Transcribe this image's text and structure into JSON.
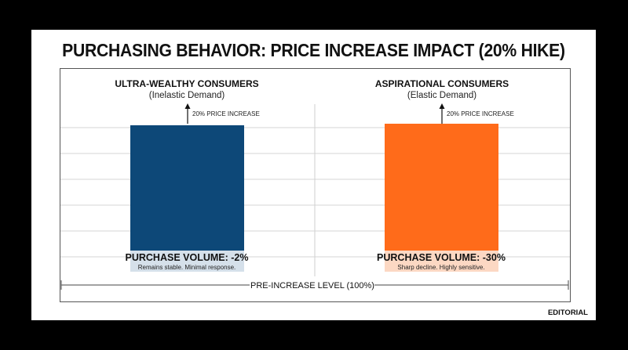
{
  "title": "PURCHASING BEHAVIOR: PRICE INCREASE IMPACT (20% HIKE)",
  "footer": "EDITORIAL",
  "colors": {
    "ultra": "#0d4878",
    "ultra_label_bg": "#d5e0ea",
    "aspirational": "#ff6b1a",
    "aspirational_label_bg": "#fcd8c3"
  },
  "chart_data": {
    "type": "bar",
    "title": "PURCHASING BEHAVIOR: PRICE INCREASE IMPACT (20% HIKE)",
    "baseline_label": "PRE-INCREASE LEVEL (100%)",
    "panels": [
      {
        "title": "ULTRA-WEALTHY CONSUMERS",
        "subtitle": "(Inelastic Demand)",
        "annotation": "20% PRICE INCREASE",
        "volume_label": "PURCHASE VOLUME: -2%",
        "note": "Remains stable. Minimal response.",
        "value": -2
      },
      {
        "title": "ASPIRATIONAL CONSUMERS",
        "subtitle": "(Elastic Demand)",
        "annotation": "20% PRICE INCREASE",
        "volume_label": "PURCHASE VOLUME: -30%",
        "note": "Sharp decline. Highly sensitive.",
        "value": -30
      }
    ]
  }
}
